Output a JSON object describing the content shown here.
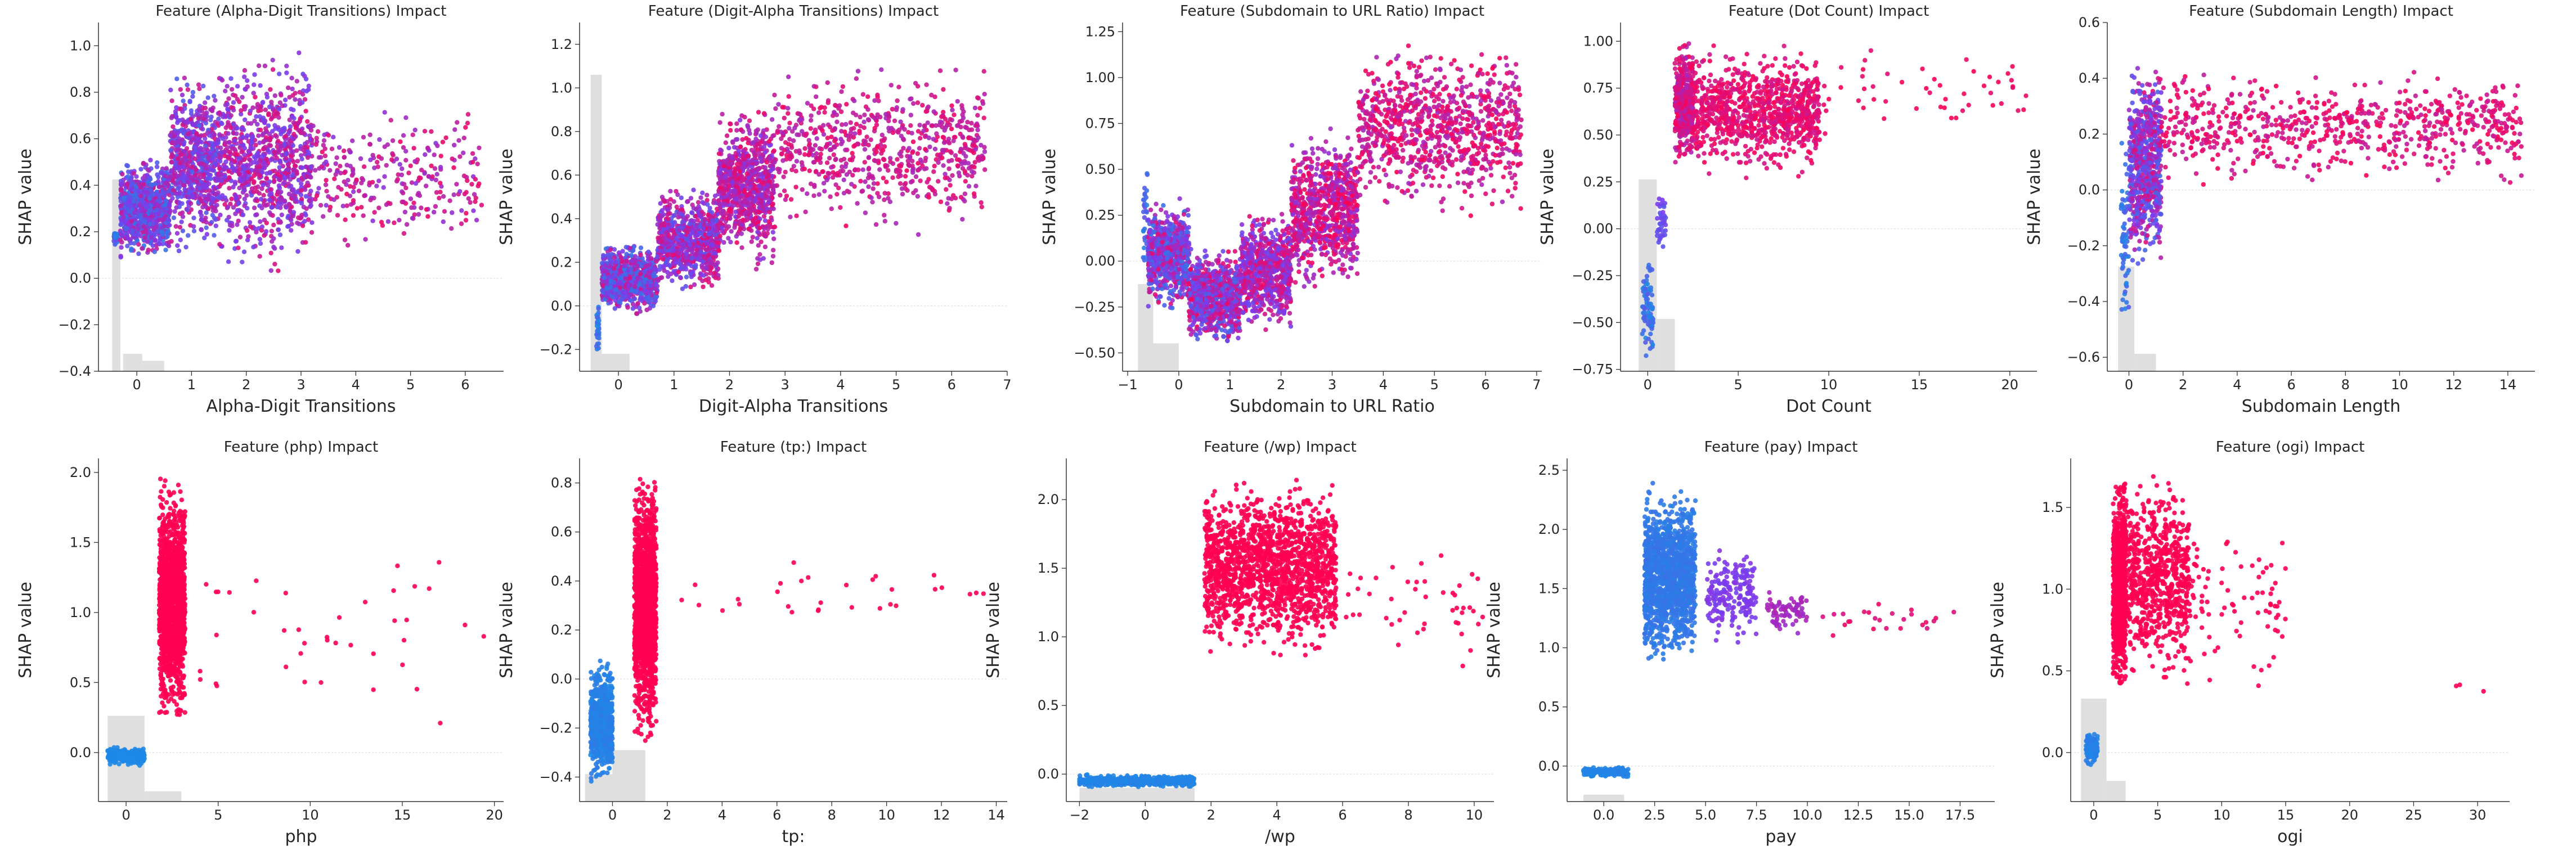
{
  "colors": {
    "low": "#1e88e5",
    "mid": "#7c3aed",
    "high": "#ff0052",
    "hist": "#d9d9d9",
    "axis": "#333333"
  },
  "chart_data": [
    {
      "type": "scatter",
      "title": "Feature  (Alpha-Digit Transitions) Impact",
      "xlabel": "Alpha-Digit Transitions",
      "ylabel": "SHAP value",
      "xlim": [
        -0.7,
        6.7
      ],
      "ylim": [
        -0.4,
        1.1
      ],
      "xticks": [
        0,
        1,
        2,
        3,
        4,
        5,
        6
      ],
      "yticks": [
        -0.4,
        -0.2,
        0.0,
        0.2,
        0.4,
        0.6,
        0.8,
        1.0
      ],
      "xtick_labels": [
        "0",
        "1",
        "2",
        "3",
        "4",
        "5",
        "6"
      ],
      "ytick_labels": [
        "−0.4",
        "−0.2",
        "0.0",
        "0.2",
        "0.4",
        "0.6",
        "0.8",
        "1.0"
      ]
    },
    {
      "type": "scatter",
      "title": "Feature  (Digit-Alpha Transitions) Impact",
      "xlabel": "Digit-Alpha Transitions",
      "ylabel": "SHAP value",
      "xlim": [
        -0.7,
        7.0
      ],
      "ylim": [
        -0.3,
        1.3
      ],
      "xticks": [
        0,
        1,
        2,
        3,
        4,
        5,
        6,
        7
      ],
      "yticks": [
        -0.2,
        0.0,
        0.2,
        0.4,
        0.6,
        0.8,
        1.0,
        1.2
      ],
      "xtick_labels": [
        "0",
        "1",
        "2",
        "3",
        "4",
        "5",
        "6",
        "7"
      ],
      "ytick_labels": [
        "−0.2",
        "0.0",
        "0.2",
        "0.4",
        "0.6",
        "0.8",
        "1.0",
        "1.2"
      ]
    },
    {
      "type": "scatter",
      "title": "Feature  (Subdomain to URL Ratio) Impact",
      "xlabel": "Subdomain to URL Ratio",
      "ylabel": "SHAP value",
      "xlim": [
        -1.1,
        7.1
      ],
      "ylim": [
        -0.6,
        1.3
      ],
      "xticks": [
        -1,
        0,
        1,
        2,
        3,
        4,
        5,
        6,
        7
      ],
      "yticks": [
        -0.5,
        -0.25,
        0.0,
        0.25,
        0.5,
        0.75,
        1.0,
        1.25
      ],
      "xtick_labels": [
        "−1",
        "0",
        "1",
        "2",
        "3",
        "4",
        "5",
        "6",
        "7"
      ],
      "ytick_labels": [
        "−0.50",
        "−0.25",
        "0.00",
        "0.25",
        "0.50",
        "0.75",
        "1.00",
        "1.25"
      ]
    },
    {
      "type": "scatter",
      "title": "Feature  (Dot Count) Impact",
      "xlabel": "Dot Count",
      "ylabel": "SHAP value",
      "xlim": [
        -1.5,
        21.5
      ],
      "ylim": [
        -0.76,
        1.1
      ],
      "xticks": [
        0,
        5,
        10,
        15,
        20
      ],
      "yticks": [
        -0.75,
        -0.5,
        -0.25,
        0.0,
        0.25,
        0.5,
        0.75,
        1.0
      ],
      "xtick_labels": [
        "0",
        "5",
        "10",
        "15",
        "20"
      ],
      "ytick_labels": [
        "−0.75",
        "−0.50",
        "−0.25",
        "0.00",
        "0.25",
        "0.50",
        "0.75",
        "1.00"
      ]
    },
    {
      "type": "scatter",
      "title": "Feature  (Subdomain Length) Impact",
      "xlabel": "Subdomain Length",
      "ylabel": "SHAP value",
      "xlim": [
        -0.8,
        15.0
      ],
      "ylim": [
        -0.65,
        0.6
      ],
      "xticks": [
        0,
        2,
        4,
        6,
        8,
        10,
        12,
        14
      ],
      "yticks": [
        -0.6,
        -0.4,
        -0.2,
        0.0,
        0.2,
        0.4,
        0.6
      ],
      "xtick_labels": [
        "0",
        "2",
        "4",
        "6",
        "8",
        "10",
        "12",
        "14"
      ],
      "ytick_labels": [
        "−0.6",
        "−0.4",
        "−0.2",
        "0.0",
        "0.2",
        "0.4",
        "0.6"
      ]
    },
    {
      "type": "scatter",
      "title": "Feature  (php) Impact",
      "xlabel": "php",
      "ylabel": "SHAP value",
      "xlim": [
        -1.5,
        20.5
      ],
      "ylim": [
        -0.35,
        2.1
      ],
      "xticks": [
        0,
        5,
        10,
        15,
        20
      ],
      "yticks": [
        0.0,
        0.5,
        1.0,
        1.5,
        2.0
      ],
      "xtick_labels": [
        "0",
        "5",
        "10",
        "15",
        "20"
      ],
      "ytick_labels": [
        "0.0",
        "0.5",
        "1.0",
        "1.5",
        "2.0"
      ]
    },
    {
      "type": "scatter",
      "title": "Feature  (tp:) Impact",
      "xlabel": "tp:",
      "ylabel": "SHAP value",
      "xlim": [
        -1.2,
        14.4
      ],
      "ylim": [
        -0.5,
        0.9
      ],
      "xticks": [
        0,
        2,
        4,
        6,
        8,
        10,
        12,
        14
      ],
      "yticks": [
        -0.4,
        -0.2,
        0.0,
        0.2,
        0.4,
        0.6,
        0.8
      ],
      "xtick_labels": [
        "0",
        "2",
        "4",
        "6",
        "8",
        "10",
        "12",
        "14"
      ],
      "ytick_labels": [
        "−0.4",
        "−0.2",
        "0.0",
        "0.2",
        "0.4",
        "0.6",
        "0.8"
      ]
    },
    {
      "type": "scatter",
      "title": "Feature  (/wp) Impact",
      "xlabel": "/wp",
      "ylabel": "SHAP value",
      "xlim": [
        -2.4,
        10.6
      ],
      "ylim": [
        -0.2,
        2.3
      ],
      "xticks": [
        -2,
        0,
        2,
        4,
        6,
        8,
        10
      ],
      "yticks": [
        0.0,
        0.5,
        1.0,
        1.5,
        2.0
      ],
      "xtick_labels": [
        "−2",
        "0",
        "2",
        "4",
        "6",
        "8",
        "10"
      ],
      "ytick_labels": [
        "0.0",
        "0.5",
        "1.0",
        "1.5",
        "2.0"
      ]
    },
    {
      "type": "scatter",
      "title": "Feature  (pay) Impact",
      "xlabel": "pay",
      "ylabel": "SHAP value",
      "xlim": [
        -1.8,
        19.2
      ],
      "ylim": [
        -0.3,
        2.6
      ],
      "xticks": [
        0,
        2.5,
        5,
        7.5,
        10,
        12.5,
        15,
        17.5
      ],
      "yticks": [
        0.0,
        0.5,
        1.0,
        1.5,
        2.0,
        2.5
      ],
      "xtick_labels": [
        "0.0",
        "2.5",
        "5.0",
        "7.5",
        "10.0",
        "12.5",
        "15.0",
        "17.5"
      ],
      "ytick_labels": [
        "0.0",
        "0.5",
        "1.0",
        "1.5",
        "2.0",
        "2.5"
      ]
    },
    {
      "type": "scatter",
      "title": "Feature  (ogi) Impact",
      "xlabel": "ogi",
      "ylabel": "SHAP value",
      "xlim": [
        -1.8,
        32.5
      ],
      "ylim": [
        -0.3,
        1.8
      ],
      "xticks": [
        0,
        5,
        10,
        15,
        20,
        25,
        30
      ],
      "yticks": [
        0.0,
        0.5,
        1.0,
        1.5
      ],
      "xtick_labels": [
        "0",
        "5",
        "10",
        "15",
        "20",
        "25",
        "30"
      ],
      "ytick_labels": [
        "0.0",
        "0.5",
        "1.0",
        "1.5"
      ]
    }
  ]
}
